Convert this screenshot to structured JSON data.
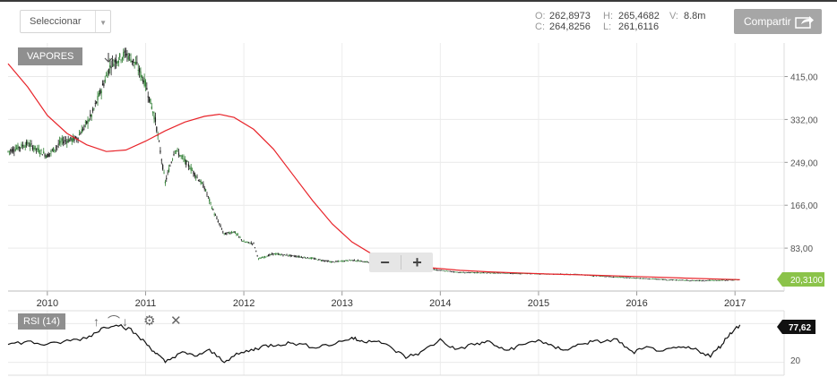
{
  "toolbar": {
    "select_label": "Seleccionar",
    "share_label": "Compartir"
  },
  "ohlc": {
    "o_label": "O:",
    "o_value": "262,8973",
    "h_label": "H:",
    "h_value": "265,4682",
    "v_label": "V:",
    "v_value": "8.8m",
    "c_label": "C:",
    "c_value": "264,8256",
    "l_label": "L:",
    "l_value": "261,6116"
  },
  "series_label": "VAPORES",
  "rsi": {
    "label": "RSI (14)",
    "current_value": "77,62",
    "tick_label": "20",
    "icons": [
      "arrow-up-icon",
      "arrow-down-icon",
      "gear-icon",
      "close-icon"
    ]
  },
  "zoom": {
    "minus": "−",
    "plus": "+"
  },
  "colors": {
    "moving_average": "#e8242a",
    "last_price_badge": "#8bc34a",
    "rsi_badge": "#111111",
    "share_button": "#a6a6a6"
  },
  "chart_data": [
    {
      "type": "candlestick",
      "title": "VAPORES",
      "x_ticks": [
        "2010",
        "2011",
        "2012",
        "2013",
        "2014",
        "2015",
        "2016",
        "2017"
      ],
      "y_ticks": [
        "415,00",
        "332,00",
        "249,00",
        "166,00",
        "83,00"
      ],
      "ylim": [
        0,
        480
      ],
      "last_price": "20,3100",
      "price_path": [
        [
          2009.6,
          270
        ],
        [
          2009.8,
          285
        ],
        [
          2010.0,
          262
        ],
        [
          2010.15,
          290
        ],
        [
          2010.3,
          295
        ],
        [
          2010.45,
          340
        ],
        [
          2010.55,
          390
        ],
        [
          2010.65,
          440
        ],
        [
          2010.8,
          460
        ],
        [
          2010.9,
          440
        ],
        [
          2011.0,
          400
        ],
        [
          2011.1,
          330
        ],
        [
          2011.2,
          210
        ],
        [
          2011.3,
          275
        ],
        [
          2011.45,
          240
        ],
        [
          2011.6,
          200
        ],
        [
          2011.7,
          150
        ],
        [
          2011.8,
          110
        ],
        [
          2011.9,
          115
        ],
        [
          2012.0,
          95
        ],
        [
          2012.1,
          92
        ],
        [
          2012.15,
          62
        ],
        [
          2012.3,
          72
        ],
        [
          2012.5,
          68
        ],
        [
          2012.7,
          63
        ],
        [
          2012.9,
          56
        ],
        [
          2013.1,
          60
        ],
        [
          2013.3,
          55
        ],
        [
          2013.5,
          44
        ],
        [
          2013.7,
          38
        ],
        [
          2013.9,
          42
        ],
        [
          2014.2,
          36
        ],
        [
          2014.5,
          35
        ],
        [
          2014.8,
          34
        ],
        [
          2015.1,
          33
        ],
        [
          2015.4,
          32
        ],
        [
          2015.7,
          28
        ],
        [
          2016.0,
          25
        ],
        [
          2016.3,
          22
        ],
        [
          2016.6,
          20
        ],
        [
          2016.9,
          21
        ],
        [
          2017.05,
          22
        ]
      ],
      "moving_average": [
        [
          2009.6,
          440
        ],
        [
          2009.8,
          395
        ],
        [
          2010.0,
          340
        ],
        [
          2010.2,
          305
        ],
        [
          2010.4,
          283
        ],
        [
          2010.6,
          270
        ],
        [
          2010.8,
          273
        ],
        [
          2011.0,
          290
        ],
        [
          2011.2,
          310
        ],
        [
          2011.4,
          327
        ],
        [
          2011.6,
          338
        ],
        [
          2011.75,
          342
        ],
        [
          2011.9,
          336
        ],
        [
          2012.1,
          313
        ],
        [
          2012.3,
          275
        ],
        [
          2012.5,
          225
        ],
        [
          2012.7,
          175
        ],
        [
          2012.9,
          130
        ],
        [
          2013.1,
          95
        ],
        [
          2013.3,
          72
        ],
        [
          2013.5,
          58
        ],
        [
          2013.7,
          50
        ],
        [
          2013.9,
          45
        ],
        [
          2014.2,
          40
        ],
        [
          2014.5,
          37
        ],
        [
          2014.8,
          35
        ],
        [
          2015.1,
          33
        ],
        [
          2015.5,
          31
        ],
        [
          2016.0,
          28
        ],
        [
          2016.5,
          25
        ],
        [
          2017.05,
          22
        ]
      ]
    },
    {
      "type": "line",
      "title": "RSI (14)",
      "ylim": [
        0,
        100
      ],
      "y_ticks": [
        "20"
      ],
      "values": [
        [
          2009.6,
          48
        ],
        [
          2009.8,
          52
        ],
        [
          2010.0,
          47
        ],
        [
          2010.2,
          53
        ],
        [
          2010.4,
          58
        ],
        [
          2010.55,
          72
        ],
        [
          2010.7,
          80
        ],
        [
          2010.85,
          70
        ],
        [
          2011.0,
          50
        ],
        [
          2011.1,
          35
        ],
        [
          2011.2,
          20
        ],
        [
          2011.35,
          35
        ],
        [
          2011.5,
          30
        ],
        [
          2011.65,
          38
        ],
        [
          2011.8,
          22
        ],
        [
          2011.95,
          33
        ],
        [
          2012.1,
          40
        ],
        [
          2012.2,
          45
        ],
        [
          2012.35,
          48
        ],
        [
          2012.5,
          50
        ],
        [
          2012.7,
          44
        ],
        [
          2012.9,
          48
        ],
        [
          2013.1,
          58
        ],
        [
          2013.2,
          52
        ],
        [
          2013.35,
          55
        ],
        [
          2013.5,
          42
        ],
        [
          2013.65,
          28
        ],
        [
          2013.8,
          35
        ],
        [
          2014.0,
          55
        ],
        [
          2014.15,
          40
        ],
        [
          2014.35,
          48
        ],
        [
          2014.5,
          52
        ],
        [
          2014.65,
          38
        ],
        [
          2014.8,
          45
        ],
        [
          2015.0,
          55
        ],
        [
          2015.15,
          43
        ],
        [
          2015.3,
          40
        ],
        [
          2015.45,
          50
        ],
        [
          2015.6,
          52
        ],
        [
          2015.8,
          55
        ],
        [
          2015.95,
          35
        ],
        [
          2016.1,
          42
        ],
        [
          2016.3,
          38
        ],
        [
          2016.45,
          43
        ],
        [
          2016.6,
          40
        ],
        [
          2016.75,
          30
        ],
        [
          2016.85,
          45
        ],
        [
          2016.95,
          65
        ],
        [
          2017.05,
          78
        ]
      ]
    }
  ]
}
